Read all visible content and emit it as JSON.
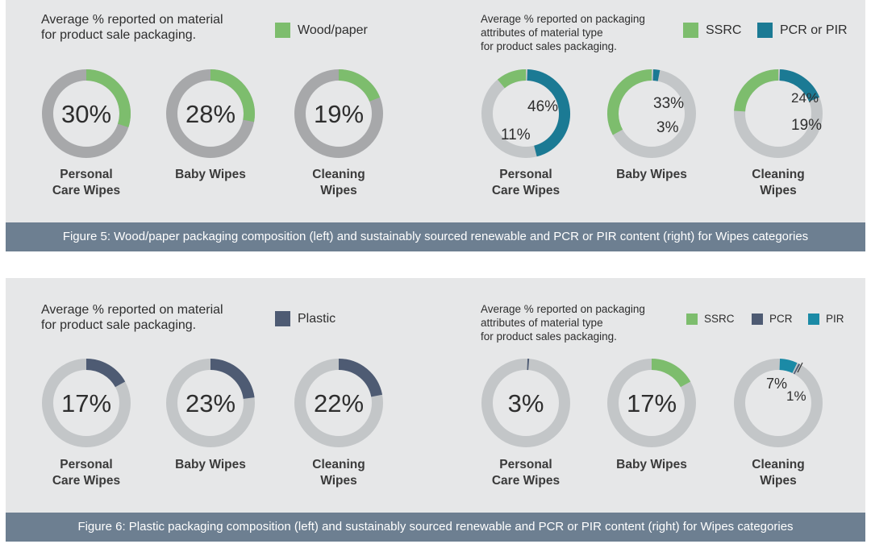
{
  "colors": {
    "wood_paper": "#7dbd6d",
    "ssrc": "#7dbd6d",
    "pcr_or_pir": "#1b7a94",
    "plastic": "#4e5b73",
    "pcr": "#4e5b73",
    "pir": "#1b8aa6",
    "track_dark": "#a7a8aa",
    "track_light": "#c3c6c8"
  },
  "fig5": {
    "caption": "Figure 5: Wood/paper packaging composition (left) and sustainably sourced renewable and PCR or PIR content (right) for Wipes categories",
    "left_heading": "Average % reported on material\nfor product sale packaging.",
    "right_heading": "Average % reported on packaging\nattributes of material type\nfor product sales packaging.",
    "legend_left": [
      {
        "label": "Wood/paper",
        "color_key": "wood_paper"
      }
    ],
    "legend_right": [
      {
        "label": "SSRC",
        "color_key": "ssrc"
      },
      {
        "label": "PCR or PIR",
        "color_key": "pcr_or_pir"
      }
    ]
  },
  "fig6": {
    "caption": "Figure 6: Plastic packaging composition (left) and sustainably sourced renewable and PCR or PIR content (right) for Wipes categories",
    "left_heading": "Average % reported on material\nfor product sale packaging.",
    "right_heading": "Average % reported on packaging\nattributes of material type\nfor product sales packaging.",
    "legend_left": [
      {
        "label": "Plastic",
        "color_key": "plastic"
      }
    ],
    "legend_right": [
      {
        "label": "SSRC",
        "color_key": "ssrc"
      },
      {
        "label": "PCR",
        "color_key": "pcr"
      },
      {
        "label": "PIR",
        "color_key": "pir"
      }
    ]
  },
  "chart_data": [
    {
      "type": "pie",
      "figure": "fig5",
      "group": "left",
      "categories": [
        "Personal\nCare Wipes",
        "Baby Wipes",
        "Cleaning\nWipes"
      ],
      "series": [
        {
          "name": "Wood/paper",
          "color_key": "wood_paper",
          "values": [
            30,
            28,
            19
          ]
        }
      ],
      "center_labels": [
        "30%",
        "28%",
        "19%"
      ]
    },
    {
      "type": "pie",
      "figure": "fig5",
      "group": "right",
      "categories": [
        "Personal\nCare Wipes",
        "Baby Wipes",
        "Cleaning\nWipes"
      ],
      "series": [
        {
          "name": "SSRC",
          "color_key": "ssrc",
          "values": [
            11,
            33,
            24
          ],
          "labels": [
            "11%",
            "33%",
            "24%"
          ]
        },
        {
          "name": "PCR or PIR",
          "color_key": "pcr_or_pir",
          "values": [
            46,
            3,
            19
          ],
          "labels": [
            "46%",
            "3%",
            "19%"
          ]
        }
      ]
    },
    {
      "type": "pie",
      "figure": "fig6",
      "group": "left",
      "categories": [
        "Personal\nCare Wipes",
        "Baby Wipes",
        "Cleaning\nWipes"
      ],
      "series": [
        {
          "name": "Plastic",
          "color_key": "plastic",
          "values": [
            17,
            23,
            22
          ]
        }
      ],
      "center_labels": [
        "17%",
        "23%",
        "22%"
      ]
    },
    {
      "type": "pie",
      "figure": "fig6",
      "group": "right",
      "categories": [
        "Personal\nCare Wipes",
        "Baby Wipes",
        "Cleaning\nWipes"
      ],
      "series": [
        {
          "name": "SSRC",
          "color_key": "ssrc",
          "values": [
            0,
            17,
            0
          ]
        },
        {
          "name": "PCR",
          "color_key": "pcr",
          "values": [
            1,
            0,
            1
          ],
          "labels": [
            "",
            "",
            "1%"
          ]
        },
        {
          "name": "PIR",
          "color_key": "pir",
          "values": [
            0,
            0,
            7
          ],
          "labels": [
            "",
            "",
            "7%"
          ]
        }
      ],
      "center_labels": [
        "3%",
        "17%",
        ""
      ]
    }
  ]
}
